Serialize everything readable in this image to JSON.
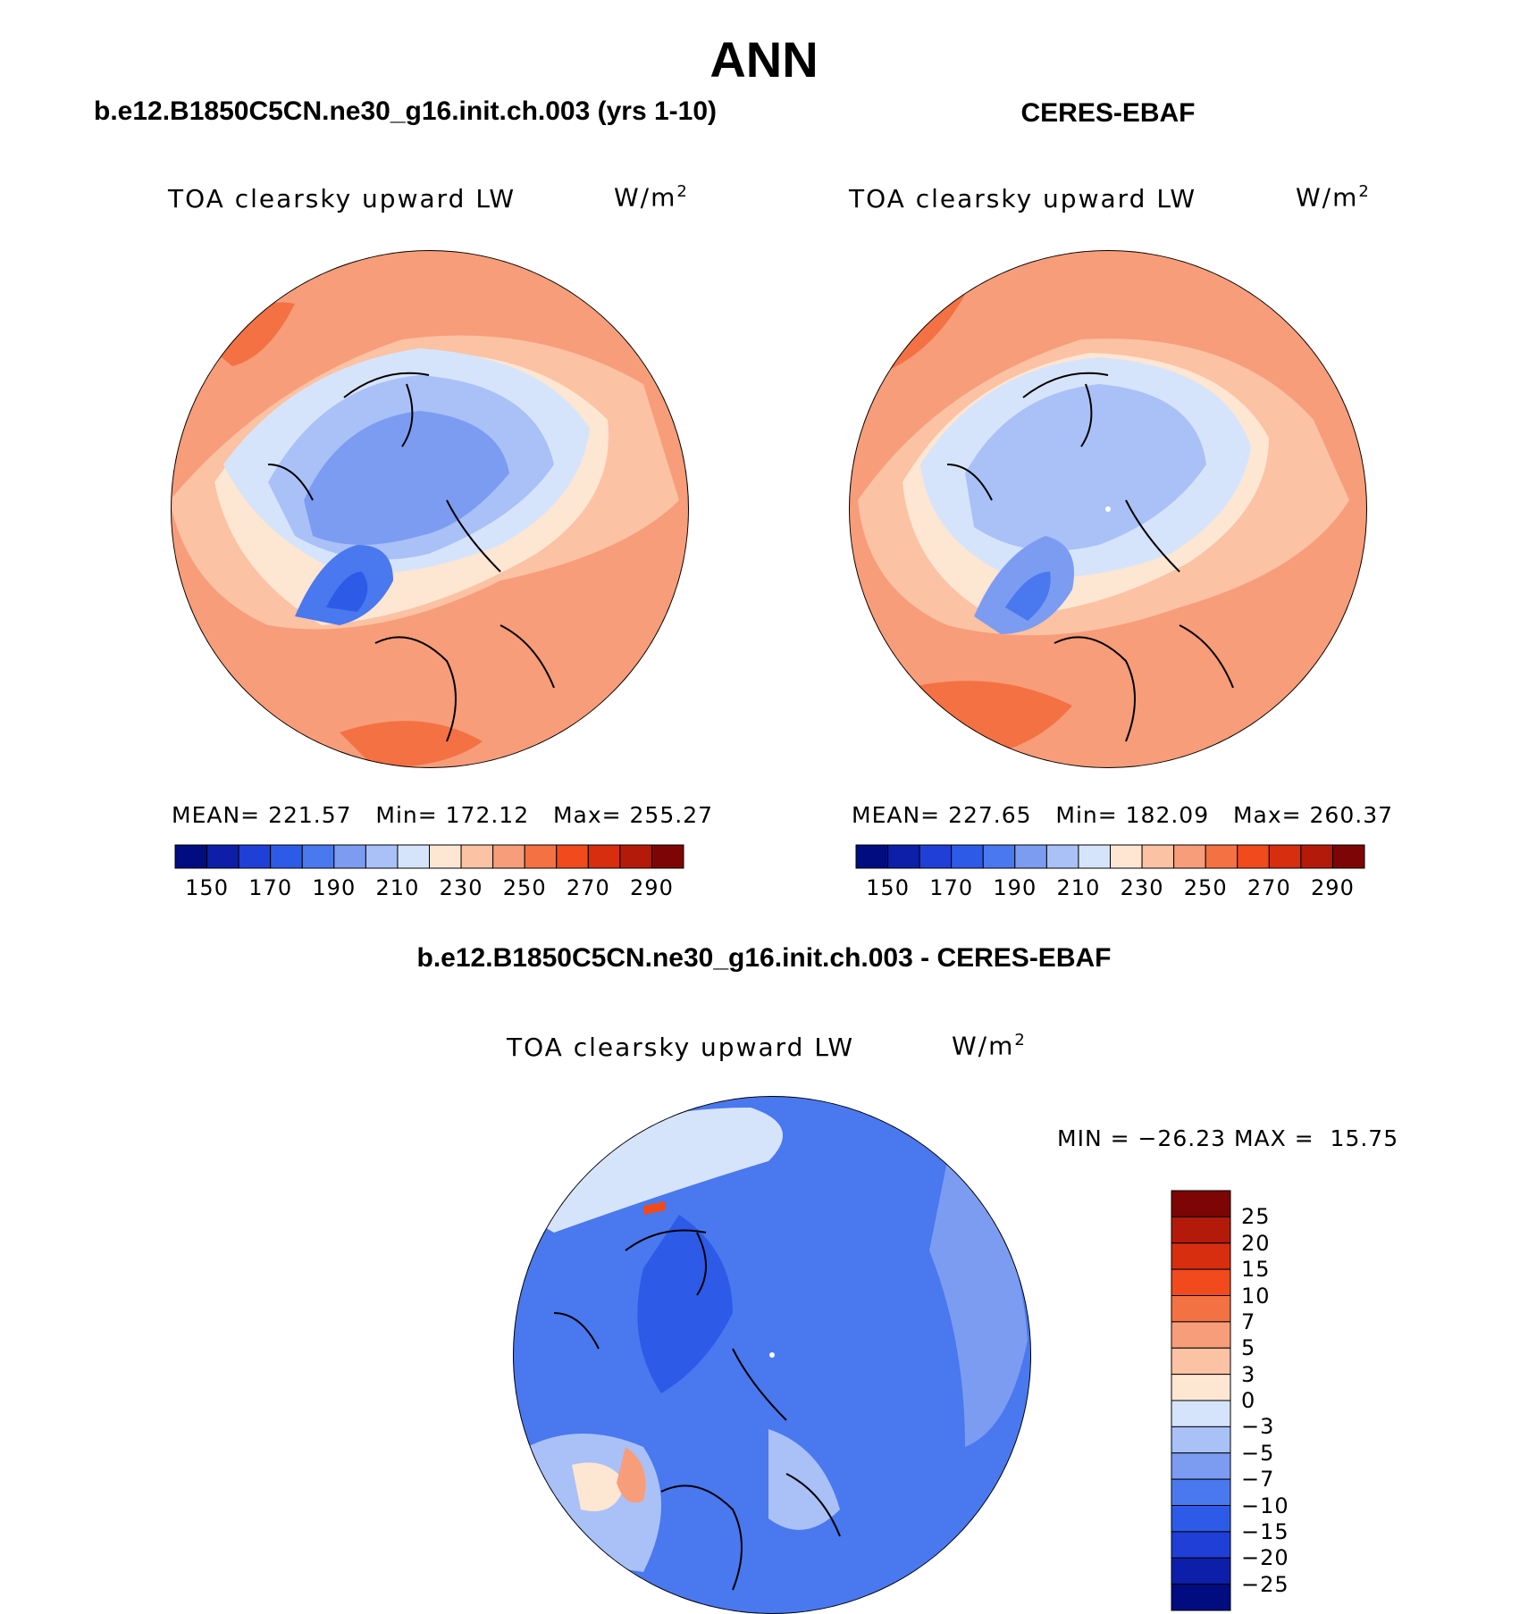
{
  "page": {
    "title": "ANN",
    "left_title": "b.e12.B1850C5CN.ne30_g16.init.ch.003 (yrs 1-10)",
    "right_title": "CERES-EBAF",
    "diff_title": "b.e12.B1850C5CN.ne30_g16.init.ch.003 - CERES-EBAF"
  },
  "panels": {
    "model": {
      "variable": "TOA clearsky upward LW",
      "units_base": "W/m",
      "units_exp": "2",
      "stats": "MEAN= 221.57   Min= 172.12   Max= 255.27"
    },
    "obs": {
      "variable": "TOA clearsky upward LW",
      "units_base": "W/m",
      "units_exp": "2",
      "stats": "MEAN= 227.65   Min= 182.09   Max= 260.37"
    },
    "diff": {
      "variable": "TOA clearsky upward LW",
      "units_base": "W/m",
      "units_exp": "2",
      "stats": "MIN = −26.23 MAX =  15.75"
    }
  },
  "colorbars": {
    "abs_labels": [
      "150",
      "170",
      "190",
      "210",
      "230",
      "250",
      "270",
      "290"
    ],
    "abs_colors": [
      "#000c80",
      "#0d1fa8",
      "#1f3fd6",
      "#2d5be8",
      "#4a78ee",
      "#7c9cf2",
      "#a9c1f7",
      "#d6e4fb",
      "#fde6d2",
      "#fbc2a4",
      "#f79d79",
      "#f47143",
      "#f04a1d",
      "#d62e0f",
      "#b31a09",
      "#7d0505"
    ],
    "diff_labels": [
      "25",
      "20",
      "15",
      "10",
      "7",
      "5",
      "3",
      "0",
      "−3",
      "−5",
      "−7",
      "−10",
      "−15",
      "−20",
      "−25"
    ],
    "diff_colors": [
      "#7d0505",
      "#b31a09",
      "#d62e0f",
      "#f04a1d",
      "#f47143",
      "#f79d79",
      "#fbc2a4",
      "#fde6d2",
      "#d6e4fb",
      "#a9c1f7",
      "#7c9cf2",
      "#4a78ee",
      "#2d5be8",
      "#1f3fd6",
      "#0d1fa8",
      "#000c80"
    ]
  },
  "colors": {
    "warm_outer": "#f79d79",
    "warm_mid": "#fbc2a4",
    "warm_light": "#fde6d2",
    "cool_light": "#d6e4fb",
    "cool_mid": "#a9c1f7",
    "cool": "#7c9cf2",
    "cool_deep": "#4a78ee",
    "cool_darker": "#2d5be8",
    "coast": "#000000"
  }
}
